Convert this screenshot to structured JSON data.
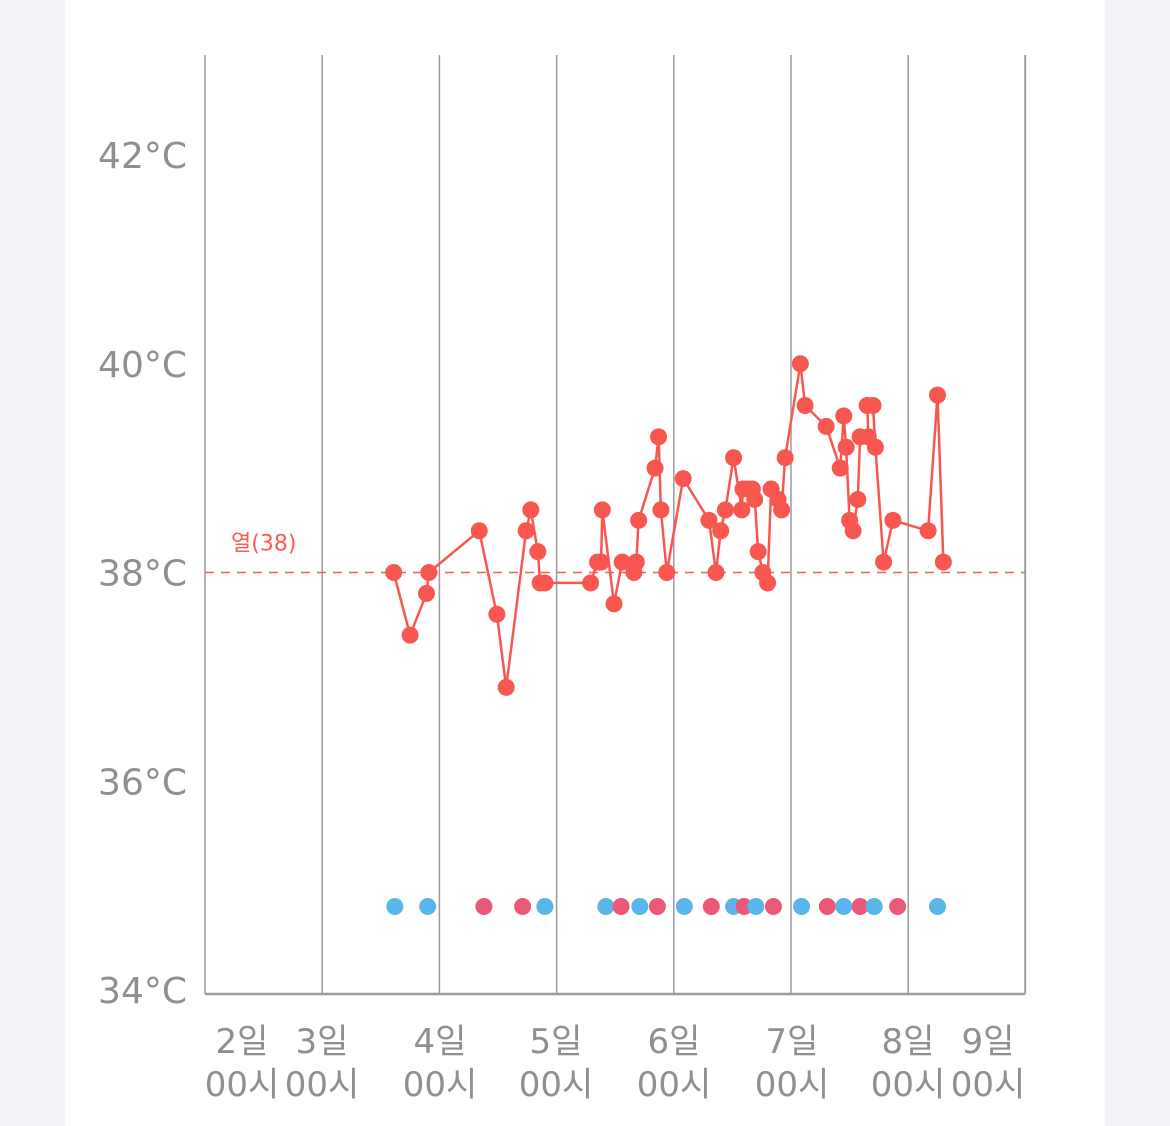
{
  "chart_data": {
    "type": "line",
    "title": "",
    "xlabel": "",
    "ylabel": "",
    "unit": "°C",
    "ylim": [
      34,
      43
    ],
    "y_ticks": [
      {
        "value": 42,
        "label": "42°C"
      },
      {
        "value": 40,
        "label": "40°C"
      },
      {
        "value": 38,
        "label": "38°C"
      },
      {
        "value": 36,
        "label": "36°C"
      },
      {
        "value": 34,
        "label": "34°C"
      }
    ],
    "x_unit": "day of month",
    "xlim": [
      1.0,
      8.0
    ],
    "x_ticks": [
      {
        "value": 2.0,
        "day": "2일",
        "time": "00시"
      },
      {
        "value": 3.0,
        "day": "3일",
        "time": "00시"
      },
      {
        "value": 4.0,
        "day": "4일",
        "time": "00시"
      },
      {
        "value": 5.0,
        "day": "5일",
        "time": "00시"
      },
      {
        "value": 6.0,
        "day": "6일",
        "time": "00시"
      },
      {
        "value": 7.0,
        "day": "7일",
        "time": "00시"
      },
      {
        "value": 8.0,
        "day": "8일",
        "time": "00시"
      },
      {
        "value": 9.0,
        "day": "9일",
        "time": "00시"
      }
    ],
    "grid": true,
    "threshold": {
      "value": 38,
      "label": "열(38)",
      "color": "#ff5a52"
    },
    "series": [
      {
        "color": "#f7574f",
        "points": [
          [
            2.61,
            38.0
          ],
          [
            2.75,
            37.4
          ],
          [
            2.89,
            37.8
          ],
          [
            2.91,
            38.0
          ],
          [
            3.34,
            38.4
          ],
          [
            3.49,
            37.6
          ],
          [
            3.57,
            36.9
          ],
          [
            3.74,
            38.4
          ],
          [
            3.78,
            38.6
          ],
          [
            3.84,
            38.2
          ],
          [
            3.86,
            37.9
          ],
          [
            3.9,
            37.9
          ],
          [
            4.29,
            37.9
          ],
          [
            4.35,
            38.1
          ],
          [
            4.38,
            38.1
          ],
          [
            4.39,
            38.6
          ],
          [
            4.49,
            37.7
          ],
          [
            4.56,
            38.1
          ],
          [
            4.66,
            38.0
          ],
          [
            4.68,
            38.1
          ],
          [
            4.7,
            38.5
          ],
          [
            4.84,
            39.0
          ],
          [
            4.87,
            39.3
          ],
          [
            4.89,
            38.6
          ],
          [
            4.94,
            38.0
          ],
          [
            5.08,
            38.9
          ],
          [
            5.3,
            38.5
          ],
          [
            5.36,
            38.0
          ],
          [
            5.4,
            38.4
          ],
          [
            5.44,
            38.6
          ],
          [
            5.51,
            39.1
          ],
          [
            5.58,
            38.6
          ],
          [
            5.59,
            38.8
          ],
          [
            5.63,
            38.8
          ],
          [
            5.67,
            38.8
          ],
          [
            5.69,
            38.7
          ],
          [
            5.72,
            38.2
          ],
          [
            5.76,
            38.0
          ],
          [
            5.8,
            37.9
          ],
          [
            5.83,
            38.8
          ],
          [
            5.89,
            38.7
          ],
          [
            5.92,
            38.6
          ],
          [
            5.95,
            39.1
          ],
          [
            6.08,
            40.0
          ],
          [
            6.12,
            39.6
          ],
          [
            6.3,
            39.4
          ],
          [
            6.42,
            39.0
          ],
          [
            6.45,
            39.5
          ],
          [
            6.47,
            39.2
          ],
          [
            6.5,
            38.5
          ],
          [
            6.53,
            38.4
          ],
          [
            6.57,
            38.7
          ],
          [
            6.59,
            39.3
          ],
          [
            6.66,
            39.3
          ],
          [
            6.65,
            39.6
          ],
          [
            6.7,
            39.6
          ],
          [
            6.72,
            39.2
          ],
          [
            6.79,
            38.1
          ],
          [
            6.87,
            38.5
          ],
          [
            7.17,
            38.4
          ],
          [
            7.25,
            39.7
          ],
          [
            7.3,
            38.1
          ]
        ]
      }
    ],
    "event_markers": {
      "colors": {
        "blue": "#5ab6ea",
        "pink": "#ec5878"
      },
      "y_value": 34.8,
      "events": [
        {
          "x": 2.62,
          "type": "blue"
        },
        {
          "x": 2.9,
          "type": "blue"
        },
        {
          "x": 3.38,
          "type": "pink"
        },
        {
          "x": 3.71,
          "type": "pink"
        },
        {
          "x": 3.9,
          "type": "blue"
        },
        {
          "x": 4.42,
          "type": "blue"
        },
        {
          "x": 4.55,
          "type": "pink"
        },
        {
          "x": 4.71,
          "type": "blue"
        },
        {
          "x": 4.86,
          "type": "pink"
        },
        {
          "x": 5.09,
          "type": "blue"
        },
        {
          "x": 5.32,
          "type": "pink"
        },
        {
          "x": 5.51,
          "type": "blue"
        },
        {
          "x": 5.6,
          "type": "pink"
        },
        {
          "x": 5.7,
          "type": "blue"
        },
        {
          "x": 5.85,
          "type": "pink"
        },
        {
          "x": 6.09,
          "type": "blue"
        },
        {
          "x": 6.31,
          "type": "pink"
        },
        {
          "x": 6.45,
          "type": "blue"
        },
        {
          "x": 6.59,
          "type": "pink"
        },
        {
          "x": 6.71,
          "type": "blue"
        },
        {
          "x": 6.91,
          "type": "pink"
        },
        {
          "x": 7.25,
          "type": "blue"
        }
      ]
    }
  }
}
